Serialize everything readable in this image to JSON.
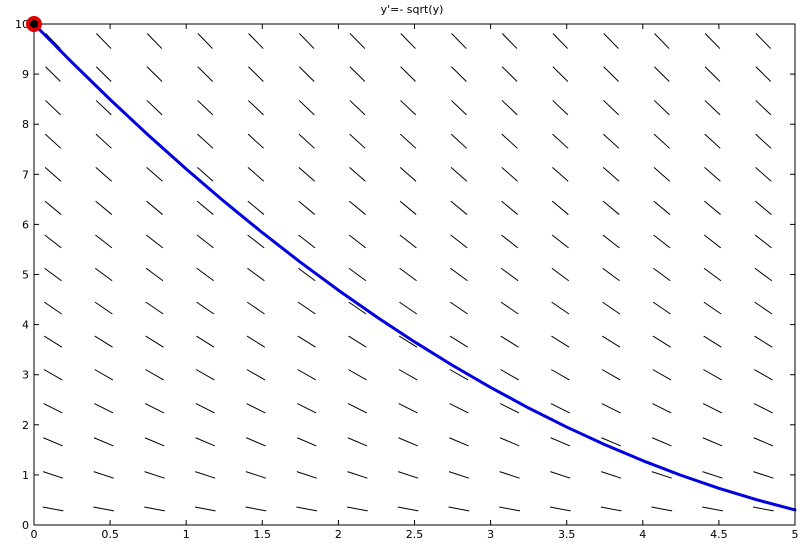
{
  "chart_data": {
    "type": "line",
    "title": "y'=- sqrt(y)",
    "xlabel": "",
    "ylabel": "",
    "xlim": [
      0,
      5
    ],
    "ylim": [
      0,
      10
    ],
    "grid": false,
    "x_ticks": [
      "0",
      "0.5",
      "1",
      "1.5",
      "2",
      "2.5",
      "3",
      "3.5",
      "4",
      "4.5",
      "5"
    ],
    "y_ticks": [
      "0",
      "1",
      "2",
      "3",
      "4",
      "5",
      "6",
      "7",
      "8",
      "9",
      "10"
    ],
    "slope_field": {
      "equation": "y' = -sqrt(y)",
      "x_samples": [
        0.125,
        0.458,
        0.792,
        1.125,
        1.458,
        1.792,
        2.125,
        2.458,
        2.792,
        3.125,
        3.458,
        3.792,
        4.125,
        4.458,
        4.792
      ],
      "y_samples": [
        0.32,
        1.0,
        1.66,
        2.33,
        3.0,
        3.66,
        4.33,
        5.0,
        5.66,
        6.33,
        7.0,
        7.66,
        8.33,
        9.0,
        9.66
      ],
      "color": "#000000"
    },
    "series": [
      {
        "x": [
          0,
          0.25,
          0.5,
          0.75,
          1.0,
          1.25,
          1.5,
          1.75,
          2.0,
          2.25,
          2.5,
          2.75,
          3.0,
          3.25,
          3.5,
          3.75,
          4.0,
          4.25,
          4.5,
          4.75,
          5.0
        ],
        "values": [
          10.0,
          9.232,
          8.493,
          7.784,
          7.105,
          6.455,
          5.836,
          5.246,
          4.686,
          4.156,
          3.656,
          3.186,
          2.746,
          2.335,
          1.955,
          1.604,
          1.284,
          0.993,
          0.732,
          0.502,
          0.301
        ],
        "color": "#0000e0"
      }
    ],
    "initial_point": {
      "x": 0,
      "y": 10,
      "color": "#dd0000"
    }
  }
}
